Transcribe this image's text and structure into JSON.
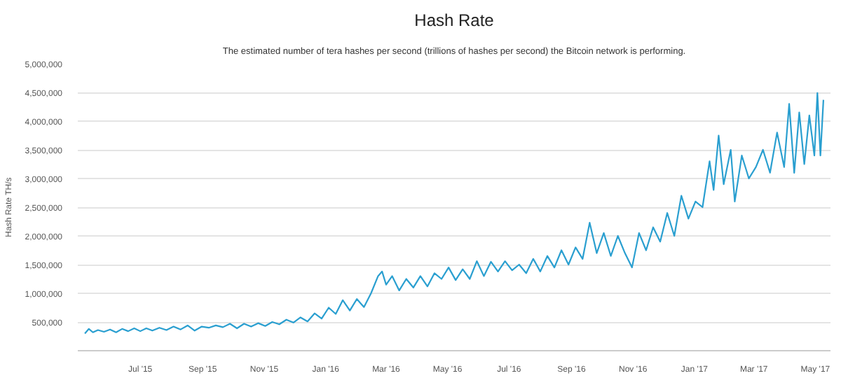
{
  "chart_data": {
    "type": "line",
    "title": "Hash Rate",
    "subtitle": "The estimated number of tera hashes per second (trillions of hashes per second) the Bitcoin network is performing.",
    "ylabel": "Hash Rate TH/s",
    "xlim": [
      "2015-04-30",
      "2017-05-16"
    ],
    "xticks": [
      {
        "value": "2015-07-01",
        "label": "Jul '15"
      },
      {
        "value": "2015-09-01",
        "label": "Sep '15"
      },
      {
        "value": "2015-11-01",
        "label": "Nov '15"
      },
      {
        "value": "2016-01-01",
        "label": "Jan '16"
      },
      {
        "value": "2016-03-01",
        "label": "Mar '16"
      },
      {
        "value": "2016-05-01",
        "label": "May '16"
      },
      {
        "value": "2016-07-01",
        "label": "Jul '16"
      },
      {
        "value": "2016-09-01",
        "label": "Sep '16"
      },
      {
        "value": "2016-11-01",
        "label": "Nov '16"
      },
      {
        "value": "2017-01-01",
        "label": "Jan '17"
      },
      {
        "value": "2017-03-01",
        "label": "Mar '17"
      },
      {
        "value": "2017-05-01",
        "label": "May '17"
      }
    ],
    "ylim": [
      0,
      5000000
    ],
    "yticks": [
      {
        "value": 0,
        "label": null
      },
      {
        "value": 500000,
        "label": "500,000"
      },
      {
        "value": 1000000,
        "label": "1,000,000"
      },
      {
        "value": 1500000,
        "label": "1,500,000"
      },
      {
        "value": 2000000,
        "label": "2,000,000"
      },
      {
        "value": 2500000,
        "label": "2,500,000"
      },
      {
        "value": 3000000,
        "label": "3,000,000"
      },
      {
        "value": 3500000,
        "label": "3,500,000"
      },
      {
        "value": 4000000,
        "label": "4,000,000"
      },
      {
        "value": 4500000,
        "label": "4,500,000"
      },
      {
        "value": 5000000,
        "label": "5,000,000"
      }
    ],
    "grid": "y",
    "marker": "none",
    "line_style": "solid",
    "x": [
      "2015-05-07",
      "2015-05-11",
      "2015-05-15",
      "2015-05-20",
      "2015-05-26",
      "2015-06-01",
      "2015-06-07",
      "2015-06-13",
      "2015-06-19",
      "2015-06-25",
      "2015-07-01",
      "2015-07-07",
      "2015-07-13",
      "2015-07-20",
      "2015-07-27",
      "2015-08-03",
      "2015-08-10",
      "2015-08-17",
      "2015-08-24",
      "2015-08-31",
      "2015-09-07",
      "2015-09-14",
      "2015-09-21",
      "2015-09-28",
      "2015-10-05",
      "2015-10-12",
      "2015-10-19",
      "2015-10-26",
      "2015-11-02",
      "2015-11-09",
      "2015-11-16",
      "2015-11-23",
      "2015-11-30",
      "2015-12-07",
      "2015-12-14",
      "2015-12-21",
      "2015-12-28",
      "2016-01-04",
      "2016-01-11",
      "2016-01-18",
      "2016-01-25",
      "2016-02-01",
      "2016-02-08",
      "2016-02-15",
      "2016-02-22",
      "2016-02-26",
      "2016-03-01",
      "2016-03-07",
      "2016-03-14",
      "2016-03-21",
      "2016-03-28",
      "2016-04-04",
      "2016-04-11",
      "2016-04-18",
      "2016-04-25",
      "2016-05-02",
      "2016-05-09",
      "2016-05-16",
      "2016-05-23",
      "2016-05-30",
      "2016-06-06",
      "2016-06-13",
      "2016-06-20",
      "2016-06-27",
      "2016-07-04",
      "2016-07-11",
      "2016-07-18",
      "2016-07-25",
      "2016-08-01",
      "2016-08-08",
      "2016-08-15",
      "2016-08-22",
      "2016-08-29",
      "2016-09-05",
      "2016-09-12",
      "2016-09-19",
      "2016-09-26",
      "2016-10-03",
      "2016-10-10",
      "2016-10-17",
      "2016-10-24",
      "2016-10-31",
      "2016-11-07",
      "2016-11-14",
      "2016-11-21",
      "2016-11-28",
      "2016-12-05",
      "2016-12-12",
      "2016-12-19",
      "2016-12-26",
      "2017-01-02",
      "2017-01-09",
      "2017-01-16",
      "2017-01-20",
      "2017-01-25",
      "2017-01-30",
      "2017-02-06",
      "2017-02-10",
      "2017-02-17",
      "2017-02-24",
      "2017-03-03",
      "2017-03-10",
      "2017-03-17",
      "2017-03-24",
      "2017-03-31",
      "2017-04-05",
      "2017-04-10",
      "2017-04-15",
      "2017-04-20",
      "2017-04-25",
      "2017-04-30",
      "2017-05-03",
      "2017-05-06",
      "2017-05-09"
    ],
    "series": [
      {
        "color": "#2a9fd0",
        "values": [
          300000,
          380000,
          320000,
          360000,
          330000,
          370000,
          320000,
          380000,
          340000,
          390000,
          340000,
          390000,
          350000,
          400000,
          360000,
          420000,
          370000,
          440000,
          350000,
          420000,
          400000,
          440000,
          410000,
          470000,
          390000,
          470000,
          420000,
          480000,
          430000,
          500000,
          460000,
          540000,
          490000,
          580000,
          510000,
          650000,
          560000,
          750000,
          640000,
          880000,
          700000,
          900000,
          760000,
          1000000,
          1300000,
          1380000,
          1150000,
          1300000,
          1050000,
          1250000,
          1100000,
          1300000,
          1120000,
          1350000,
          1250000,
          1450000,
          1230000,
          1420000,
          1250000,
          1560000,
          1300000,
          1550000,
          1380000,
          1560000,
          1400000,
          1500000,
          1350000,
          1600000,
          1380000,
          1650000,
          1450000,
          1750000,
          1500000,
          1800000,
          1600000,
          2230000,
          1700000,
          2050000,
          1650000,
          2000000,
          1700000,
          1450000,
          2050000,
          1750000,
          2150000,
          1900000,
          2400000,
          2000000,
          2700000,
          2300000,
          2600000,
          2500000,
          3300000,
          2800000,
          3750000,
          2900000,
          3500000,
          2600000,
          3400000,
          3000000,
          3200000,
          3500000,
          3100000,
          3800000,
          3200000,
          4300000,
          3100000,
          4150000,
          3250000,
          4100000,
          3400000,
          4490000,
          3400000,
          4370000
        ]
      }
    ]
  }
}
